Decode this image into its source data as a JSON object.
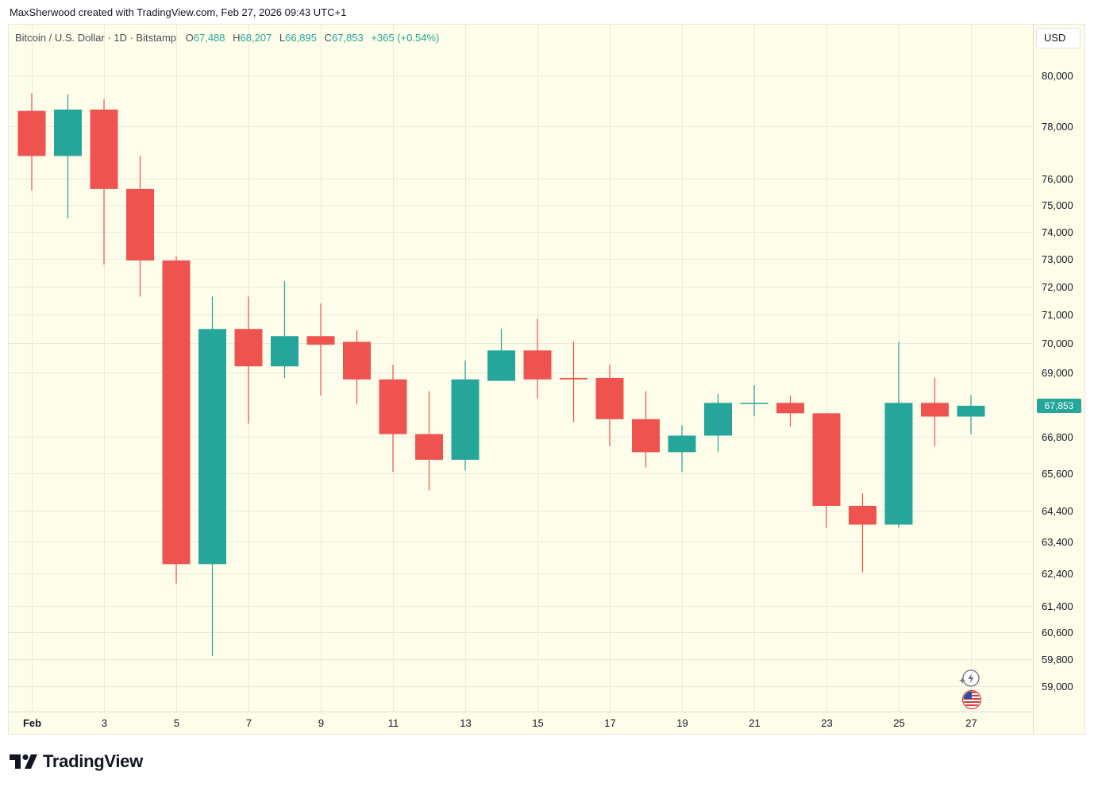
{
  "header": {
    "creator_line": "MaxSherwood created with TradingView.com, Feb 27, 2026 09:43 UTC+1"
  },
  "legend": {
    "symbol": "Bitcoin / U.S. Dollar · 1D · Bitstamp",
    "open_label": "O",
    "open_value": "67,488",
    "high_label": "H",
    "high_value": "68,207",
    "low_label": "L",
    "low_value": "66,895",
    "close_label": "C",
    "close_value": "67,853",
    "change": "+365 (+0.54%)"
  },
  "currency_button": "USD",
  "last_price_label": "67,853",
  "brand": {
    "logo_text": "TradingView"
  },
  "colors": {
    "up": "#26a69a",
    "down": "#ef5350",
    "background": "#fdfdea",
    "grid": "#eaeadf"
  },
  "icons": [
    "lightning-icon",
    "us-flag-icon",
    "tradingview-logo-icon"
  ],
  "chart_data": {
    "type": "candlestick",
    "scale": "log",
    "y_ticks": [
      80000,
      78000,
      76000,
      75000,
      74000,
      73000,
      72000,
      71000,
      70000,
      69000,
      66800,
      65600,
      64400,
      63400,
      62400,
      61400,
      60600,
      59800,
      59000
    ],
    "y_tick_labels": [
      "80,000",
      "78,000",
      "76,000",
      "75,000",
      "74,000",
      "73,000",
      "72,000",
      "71,000",
      "70,000",
      "69,000",
      "66,800",
      "65,600",
      "64,400",
      "63,400",
      "62,400",
      "61,400",
      "60,600",
      "59,800",
      "59,000"
    ],
    "x_ticks": [
      {
        "day": 1,
        "label": "Feb"
      },
      {
        "day": 3,
        "label": "3"
      },
      {
        "day": 5,
        "label": "5"
      },
      {
        "day": 7,
        "label": "7"
      },
      {
        "day": 9,
        "label": "9"
      },
      {
        "day": 11,
        "label": "11"
      },
      {
        "day": 13,
        "label": "13"
      },
      {
        "day": 15,
        "label": "15"
      },
      {
        "day": 17,
        "label": "17"
      },
      {
        "day": 19,
        "label": "19"
      },
      {
        "day": 21,
        "label": "21"
      },
      {
        "day": 23,
        "label": "23"
      },
      {
        "day": 25,
        "label": "25"
      },
      {
        "day": 27,
        "label": "27"
      }
    ],
    "candles": [
      {
        "day": 1,
        "o": 78600,
        "h": 79300,
        "l": 75550,
        "c": 76850
      },
      {
        "day": 2,
        "o": 76850,
        "h": 79250,
        "l": 74500,
        "c": 78650
      },
      {
        "day": 3,
        "o": 78650,
        "h": 79050,
        "l": 72800,
        "c": 75600
      },
      {
        "day": 4,
        "o": 75600,
        "h": 76850,
        "l": 71650,
        "c": 72950
      },
      {
        "day": 5,
        "o": 72950,
        "h": 73100,
        "l": 62100,
        "c": 62700
      },
      {
        "day": 6,
        "o": 62700,
        "h": 71650,
        "l": 59900,
        "c": 70500
      },
      {
        "day": 7,
        "o": 70500,
        "h": 71650,
        "l": 67250,
        "c": 69200
      },
      {
        "day": 8,
        "o": 69200,
        "h": 72200,
        "l": 68800,
        "c": 70250
      },
      {
        "day": 9,
        "o": 70250,
        "h": 71400,
        "l": 68200,
        "c": 69950
      },
      {
        "day": 10,
        "o": 70050,
        "h": 70450,
        "l": 67900,
        "c": 68750
      },
      {
        "day": 11,
        "o": 68750,
        "h": 69250,
        "l": 65650,
        "c": 66900
      },
      {
        "day": 12,
        "o": 66900,
        "h": 68350,
        "l": 65050,
        "c": 66050
      },
      {
        "day": 13,
        "o": 66050,
        "h": 69400,
        "l": 65700,
        "c": 68750
      },
      {
        "day": 14,
        "o": 68700,
        "h": 70500,
        "l": 68700,
        "c": 69750
      },
      {
        "day": 15,
        "o": 69750,
        "h": 70850,
        "l": 68100,
        "c": 68750
      },
      {
        "day": 16,
        "o": 68800,
        "h": 70050,
        "l": 67300,
        "c": 68750
      },
      {
        "day": 17,
        "o": 68800,
        "h": 69250,
        "l": 66500,
        "c": 67400
      },
      {
        "day": 18,
        "o": 67400,
        "h": 68350,
        "l": 65800,
        "c": 66300
      },
      {
        "day": 19,
        "o": 66300,
        "h": 67200,
        "l": 65650,
        "c": 66850
      },
      {
        "day": 20,
        "o": 66850,
        "h": 68250,
        "l": 66300,
        "c": 67950
      },
      {
        "day": 21,
        "o": 67950,
        "h": 68550,
        "l": 67500,
        "c": 67950
      },
      {
        "day": 22,
        "o": 67950,
        "h": 68200,
        "l": 67150,
        "c": 67600
      },
      {
        "day": 23,
        "o": 67600,
        "h": 67600,
        "l": 63850,
        "c": 64550
      },
      {
        "day": 24,
        "o": 64550,
        "h": 64950,
        "l": 62450,
        "c": 63950
      },
      {
        "day": 25,
        "o": 63950,
        "h": 70050,
        "l": 63850,
        "c": 67950
      },
      {
        "day": 26,
        "o": 67950,
        "h": 68800,
        "l": 66500,
        "c": 67488
      },
      {
        "day": 27,
        "o": 67488,
        "h": 68207,
        "l": 66895,
        "c": 67853
      }
    ]
  }
}
